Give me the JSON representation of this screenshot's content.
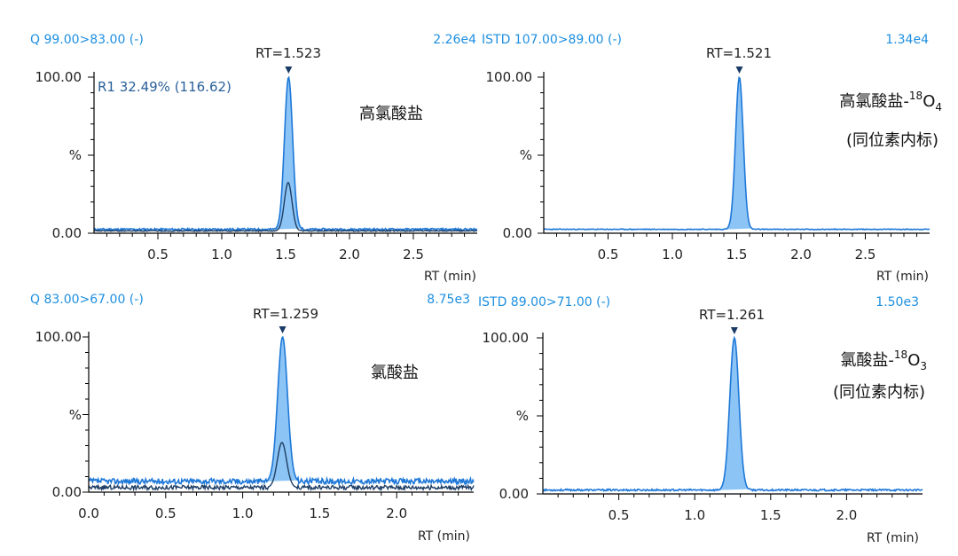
{
  "colors": {
    "header": "#1e8fe0",
    "trace": "#1e78d8",
    "fill": "#8cc4f5",
    "inner": "#1f3f66",
    "axis": "#000000",
    "marker": "#1a3a66"
  },
  "chart_data": [
    {
      "type": "line",
      "channel": "Q 99.00>83.00 (-)",
      "intensity": "2.26e4",
      "peak_label": "RT=1.523",
      "peak_rt": 1.523,
      "y_label": "%",
      "y_top_label": "100.00",
      "y_bottom_label": "0.00",
      "ylim": [
        0,
        100
      ],
      "xlim": [
        0.0,
        3.0
      ],
      "xticks": [
        0.5,
        1.0,
        1.5,
        2.0,
        2.5
      ],
      "xtick_labels": [
        "0.5",
        "1.0",
        "1.5",
        "2.0",
        "2.5"
      ],
      "xlabel": "RT (min)",
      "compound": "高氯酸盐",
      "compound_suffix": "",
      "ratio_label": "R1 32.49% (116.62)",
      "series": [
        {
          "name": "quantifier",
          "peak_center": 1.523,
          "peak_sigma": 0.032,
          "peak_height": 100,
          "baseline": 2.5
        },
        {
          "name": "qualifier",
          "peak_center": 1.52,
          "peak_sigma": 0.03,
          "peak_height": 32.49,
          "baseline": 1.5
        }
      ]
    },
    {
      "type": "line",
      "channel": "ISTD 107.00>89.00 (-)",
      "intensity": "1.34e4",
      "peak_label": "RT=1.521",
      "peak_rt": 1.521,
      "y_label": "%",
      "y_top_label": "100.00",
      "y_bottom_label": "0.00",
      "ylim": [
        0,
        100
      ],
      "xlim": [
        0.0,
        3.0
      ],
      "xticks": [
        0.5,
        1.0,
        1.5,
        2.0,
        2.5
      ],
      "xtick_labels": [
        "0.5",
        "1.0",
        "1.5",
        "2.0",
        "2.5"
      ],
      "xlabel": "RT (min)",
      "compound": "高氯酸盐-",
      "compound_sup": "18",
      "compound_tail": "O",
      "compound_sub": "4",
      "note": "(同位素内标)",
      "series": [
        {
          "name": "internal-standard",
          "peak_center": 1.521,
          "peak_sigma": 0.03,
          "peak_height": 100,
          "baseline": 2.5
        }
      ]
    },
    {
      "type": "line",
      "channel": "Q 83.00>67.00 (-)",
      "intensity": "8.75e3",
      "peak_label": "RT=1.259",
      "peak_rt": 1.259,
      "y_label": "%",
      "y_top_label": "100.00",
      "y_bottom_label": "0.00",
      "ylim": [
        0,
        100
      ],
      "xlim": [
        0.0,
        2.5
      ],
      "xticks": [
        0.0,
        0.5,
        1.0,
        1.5,
        2.0
      ],
      "xtick_labels": [
        "0.0",
        "0.5",
        "1.0",
        "1.5",
        "2.0"
      ],
      "xlabel": "RT (min)",
      "compound": "氯酸盐",
      "series": [
        {
          "name": "quantifier",
          "peak_center": 1.259,
          "peak_sigma": 0.032,
          "peak_height": 100,
          "baseline": 7
        },
        {
          "name": "qualifier",
          "peak_center": 1.255,
          "peak_sigma": 0.03,
          "peak_height": 32,
          "baseline": 3
        }
      ]
    },
    {
      "type": "line",
      "channel": "ISTD 89.00>71.00 (-)",
      "intensity": "1.50e3",
      "peak_label": "RT=1.261",
      "peak_rt": 1.261,
      "y_label": "%",
      "y_top_label": "100.00",
      "y_bottom_label": "0.00",
      "ylim": [
        0,
        100
      ],
      "xlim": [
        0.0,
        2.5
      ],
      "xticks": [
        0.5,
        1.0,
        1.5,
        2.0
      ],
      "xtick_labels": [
        "0.5",
        "1.0",
        "1.5",
        "2.0"
      ],
      "xlabel": "RT (min)",
      "compound": "氯酸盐-",
      "compound_sup": "18",
      "compound_tail": "O",
      "compound_sub": "3",
      "note": "(同位素内标)",
      "series": [
        {
          "name": "internal-standard",
          "peak_center": 1.261,
          "peak_sigma": 0.03,
          "peak_height": 100,
          "baseline": 2.5
        }
      ]
    }
  ]
}
